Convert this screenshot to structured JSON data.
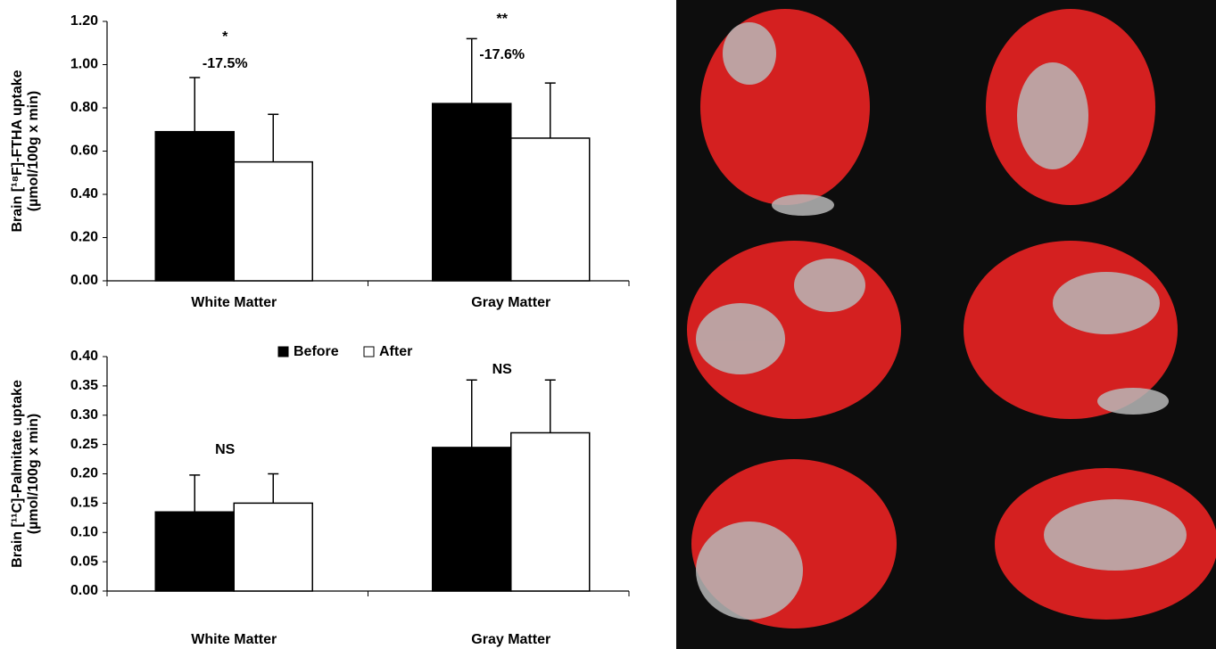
{
  "chart_data": [
    {
      "type": "bar",
      "ylabel": [
        "Brain [¹⁸F]-FTHA uptake",
        "(µmol/100g x min)"
      ],
      "categories": [
        "White Matter",
        "Gray Matter"
      ],
      "series": [
        {
          "name": "Before",
          "color": "#000000",
          "values": [
            0.69,
            0.82
          ],
          "errors": [
            0.25,
            0.3
          ]
        },
        {
          "name": "After",
          "color": "#ffffff",
          "values": [
            0.55,
            0.66
          ],
          "errors": [
            0.22,
            0.255
          ]
        }
      ],
      "annotations": [
        [
          "*",
          "-17.5%"
        ],
        [
          "**",
          "-17.6%"
        ]
      ],
      "ylim": [
        0,
        1.2
      ],
      "yticks": [
        {
          "value": 0,
          "label": "0.00"
        },
        {
          "value": 0.2,
          "label": "0.20"
        },
        {
          "value": 0.4,
          "label": "0.40"
        },
        {
          "value": 0.6,
          "label": "0.60"
        },
        {
          "value": 0.8,
          "label": "0.80"
        },
        {
          "value": 1.0,
          "label": "1.00"
        },
        {
          "value": 1.2,
          "label": "1.20"
        }
      ],
      "legend": false
    },
    {
      "type": "bar",
      "ylabel": [
        "Brain [¹¹C]-Palmitate uptake",
        "(µmol/100g x min)"
      ],
      "categories": [
        "White Matter",
        "Gray Matter"
      ],
      "series": [
        {
          "name": "Before",
          "color": "#000000",
          "values": [
            0.135,
            0.245
          ],
          "errors": [
            0.063,
            0.115
          ]
        },
        {
          "name": "After",
          "color": "#ffffff",
          "values": [
            0.15,
            0.27
          ],
          "errors": [
            0.05,
            0.09
          ]
        }
      ],
      "annotations": [
        [
          "NS"
        ],
        [
          "NS"
        ]
      ],
      "ylim": [
        0,
        0.4
      ],
      "yticks": [
        {
          "value": 0,
          "label": "0.00"
        },
        {
          "value": 0.05,
          "label": "0.05"
        },
        {
          "value": 0.1,
          "label": "0.10"
        },
        {
          "value": 0.15,
          "label": "0.15"
        },
        {
          "value": 0.2,
          "label": "0.20"
        },
        {
          "value": 0.25,
          "label": "0.25"
        },
        {
          "value": 0.3,
          "label": "0.30"
        },
        {
          "value": 0.35,
          "label": "0.35"
        },
        {
          "value": 0.4,
          "label": "0.40"
        }
      ],
      "legend": true
    }
  ]
}
